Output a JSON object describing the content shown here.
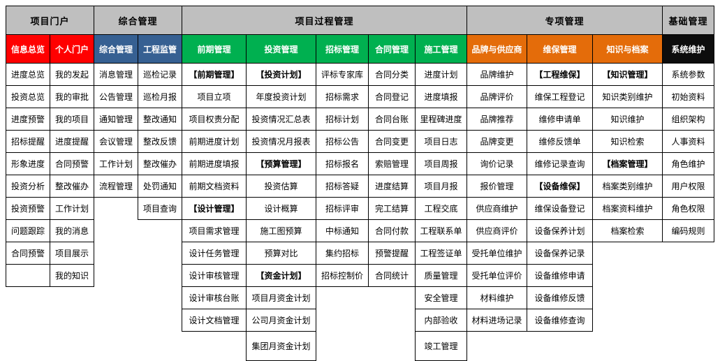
{
  "groups": [
    {
      "label": "项目门户",
      "span": 2
    },
    {
      "label": "综合管理",
      "span": 2
    },
    {
      "label": "项目过程管理",
      "span": 5
    },
    {
      "label": "专项管理",
      "span": 3
    },
    {
      "label": "基础管理",
      "span": 1
    }
  ],
  "colors": {
    "red": "#ff0000",
    "blue": "#366092",
    "green": "#00b050",
    "orange": "#e46c0a",
    "black": "#0d0d0d",
    "gray": "#bfbfbf"
  },
  "columns": [
    {
      "label": "信息总览",
      "color": "red",
      "items": [
        "进度总览",
        "投资总览",
        "进度预警",
        "招标提醒",
        "形象进度",
        "投资分析",
        "投资预警",
        "问题跟踪",
        "合同预警",
        ""
      ]
    },
    {
      "label": "个人门户",
      "color": "red",
      "items": [
        "我的发起",
        "我的审批",
        "我的项目",
        "进度提醒",
        "合同预警",
        "整改催办",
        "工作计划",
        "我的消息",
        "项目展示",
        "我的知识"
      ]
    },
    {
      "label": "综合管理",
      "color": "blue",
      "items": [
        "消息管理",
        "公告管理",
        "通知管理",
        "会议管理",
        "工作计划",
        "流程管理"
      ]
    },
    {
      "label": "工程监管",
      "color": "blue",
      "items": [
        "巡检记录",
        "巡检月报",
        "整改通知",
        "整改反馈",
        "整改催办",
        "处罚通知",
        "项目查询"
      ]
    },
    {
      "label": "前期管理",
      "color": "green",
      "items": [
        "【前期管理】",
        "项目立项",
        "项目权责分配",
        "前期进度计划",
        "前期进度填报",
        "前期文档资料",
        "【设计管理】",
        "项目需求管理",
        "设计任务管理",
        "设计审核管理",
        "设计审核台账",
        "设计文档管理"
      ]
    },
    {
      "label": "投资管理",
      "color": "green",
      "items": [
        "【投资计划】",
        "年度投资计划",
        "投资情况汇总表",
        "投资情况月报表",
        "【预算管理】",
        "投资估算",
        "设计概算",
        "施工图预算",
        "预算对比",
        "【资金计划】",
        "项目月资金计划",
        "公司月资金计划",
        "集团月资金计划"
      ]
    },
    {
      "label": "招标管理",
      "color": "green",
      "items": [
        "评标专家库",
        "招标需求",
        "招标计划",
        "招标公告",
        "招标报名",
        "招标答疑",
        "招标评审",
        "中标通知",
        "集约招标",
        "招标控制价"
      ]
    },
    {
      "label": "合同管理",
      "color": "green",
      "items": [
        "合同分类",
        "合同登记",
        "合同台账",
        "合同变更",
        "索赔管理",
        "进度结算",
        "完工结算",
        "合同付款",
        "预警提醒",
        "合同统计"
      ]
    },
    {
      "label": "施工管理",
      "color": "green",
      "items": [
        "进度计划",
        "进度填报",
        "里程碑进度",
        "项目日志",
        "项目周报",
        "项目月报",
        "工程交底",
        "工程联系单",
        "工程签证单",
        "质量管理",
        "安全管理",
        "内部验收",
        "竣工管理"
      ]
    },
    {
      "label": "品牌与供应商",
      "color": "orange",
      "items": [
        "品牌维护",
        "品牌评价",
        "品牌推荐",
        "品牌变更",
        "询价记录",
        "报价管理",
        "供应商维护",
        "供应商评价",
        "受托单位维护",
        "受托单位评价",
        "材料维护",
        "材料进场记录"
      ]
    },
    {
      "label": "维保管理",
      "color": "orange",
      "items": [
        "【工程维保】",
        "维保工程登记",
        "维修申请单",
        "维修反馈单",
        "维修记录查询",
        "【设备维保】",
        "维保设备登记",
        "设备保养计划",
        "设备保养记录",
        "设备维修申请",
        "设备维修反馈",
        "设备维修查询"
      ]
    },
    {
      "label": "知识与档案",
      "color": "orange",
      "items": [
        "【知识管理】",
        "知识类别维护",
        "知识维护",
        "知识检索",
        "【档案管理】",
        "档案类别维护",
        "档案资料维护",
        "档案检索"
      ]
    },
    {
      "label": "系统维护",
      "color": "black",
      "items": [
        "系统参数",
        "初始资料",
        "组织架构",
        "人事资料",
        "角色维护",
        "用户权限",
        "角色权限",
        "编码规则"
      ]
    }
  ]
}
